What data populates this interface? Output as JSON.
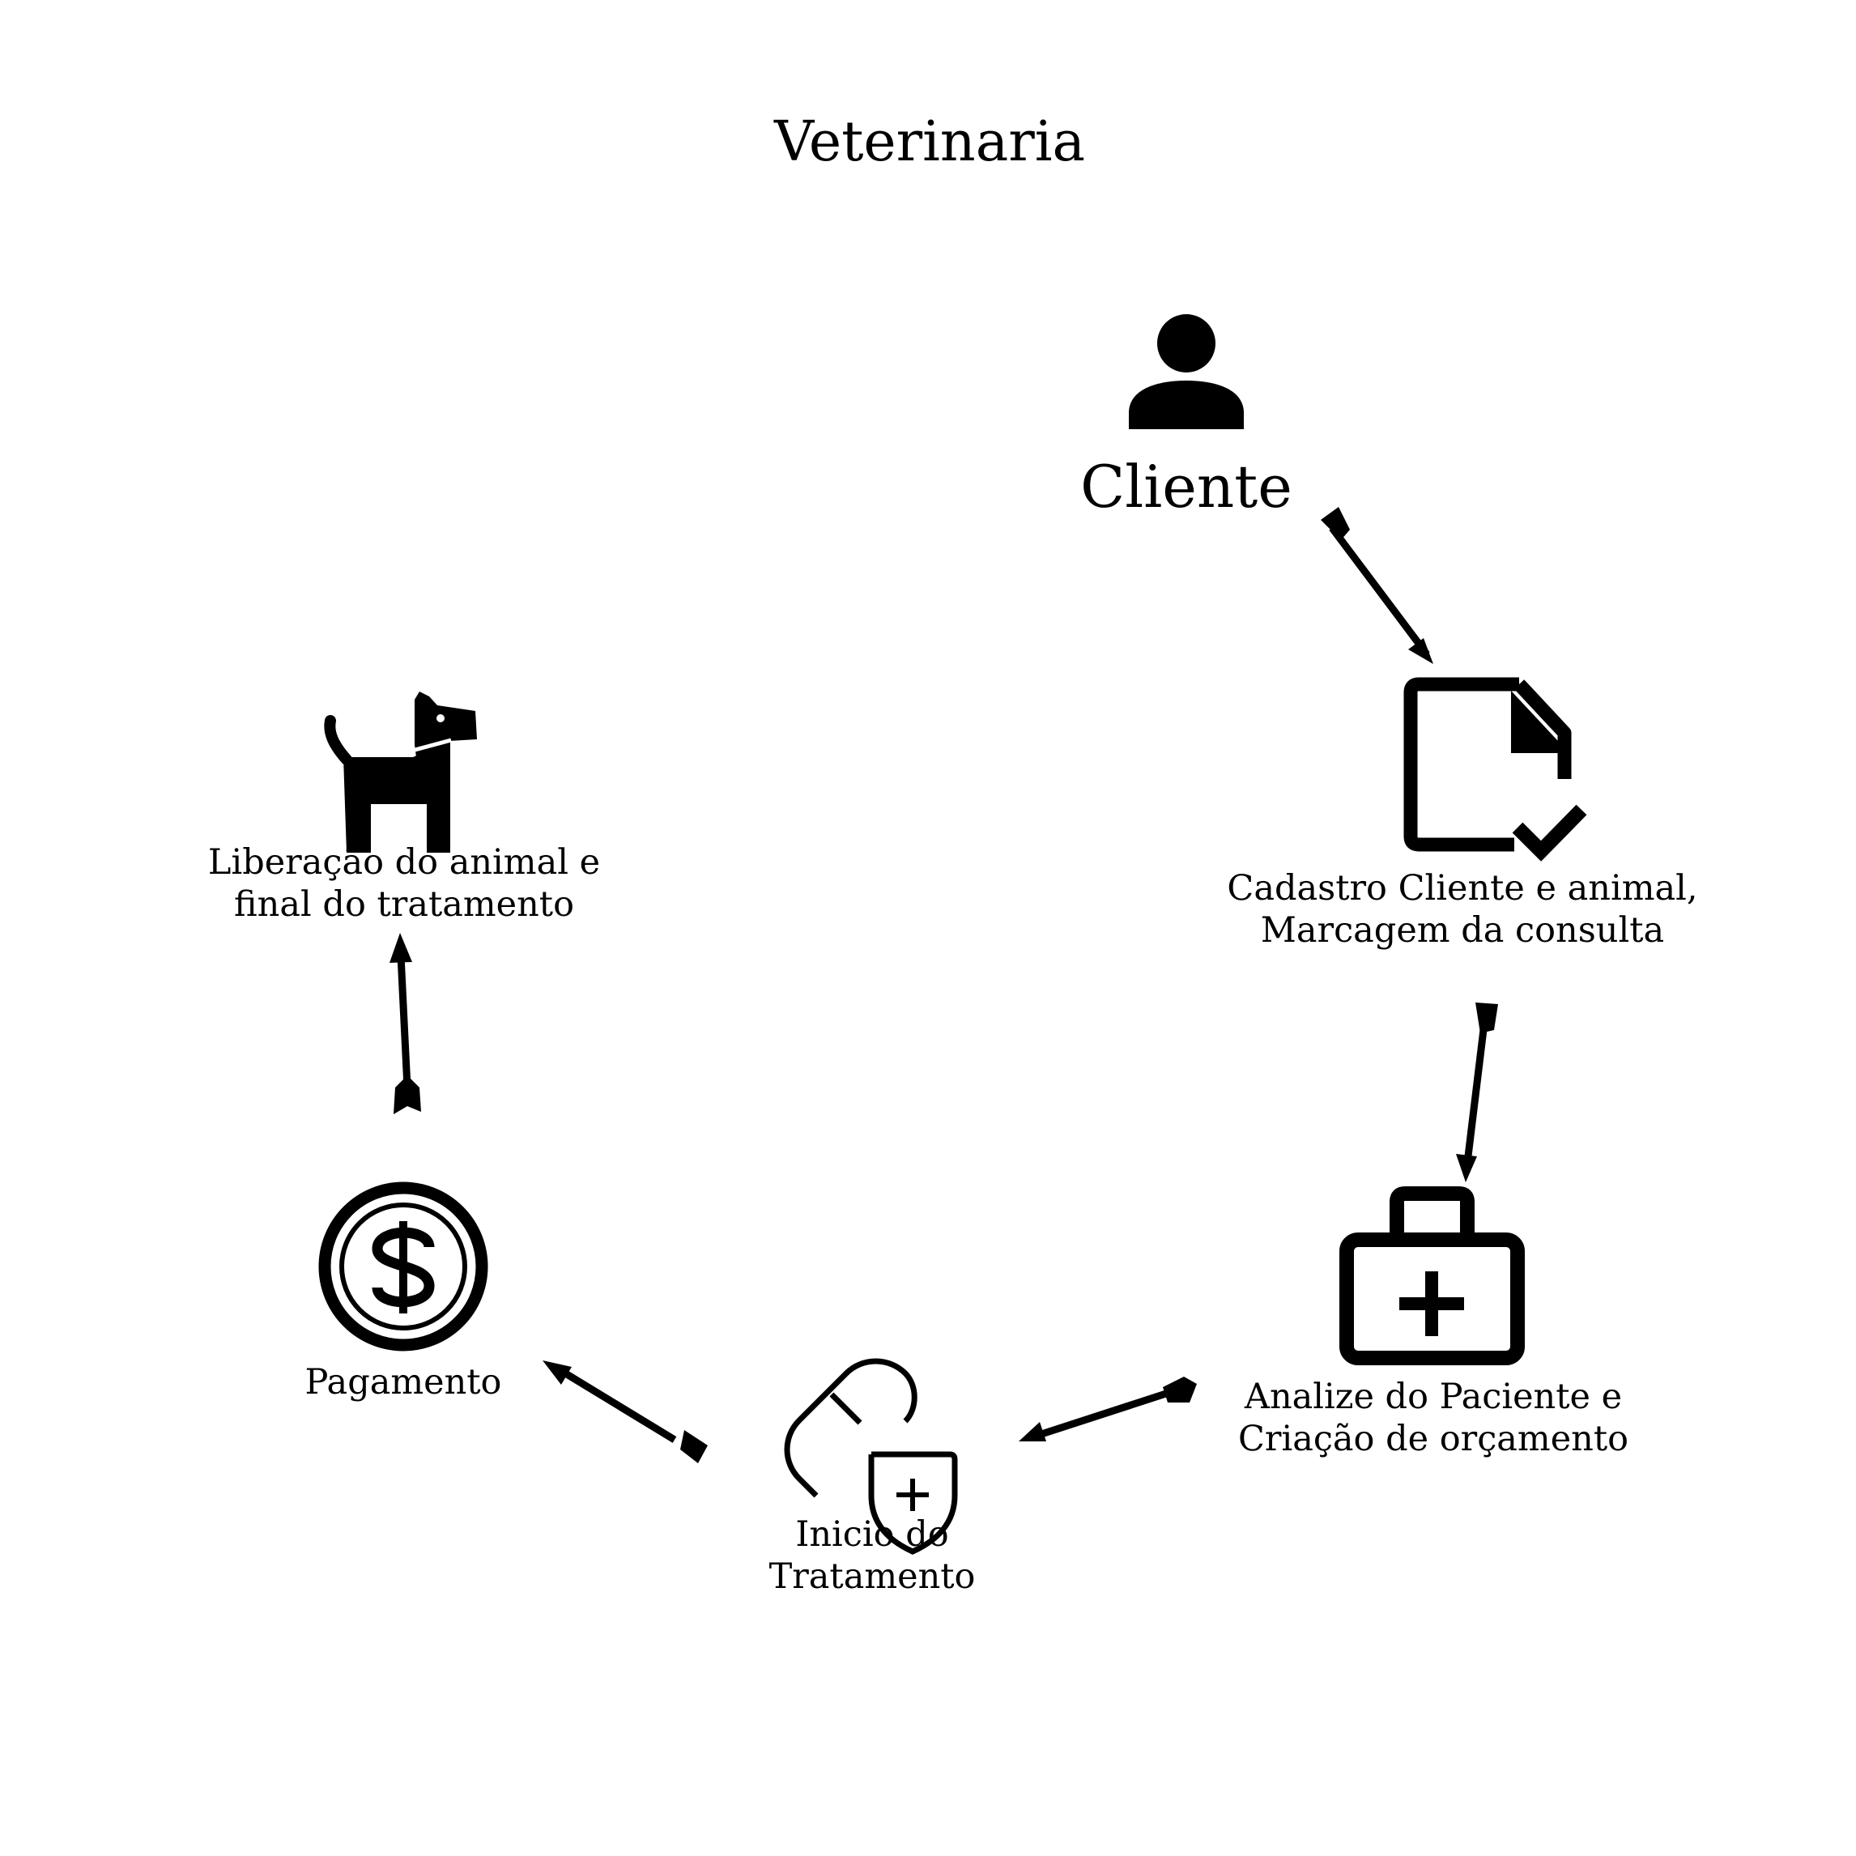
{
  "title": "Veterinaria",
  "steps": [
    {
      "id": "cliente",
      "icon": "person-icon",
      "lines": [
        "Cliente"
      ]
    },
    {
      "id": "cadastro",
      "icon": "document-check-icon",
      "lines": [
        "Cadastro Cliente e animal,",
        "Marcagem da consulta"
      ]
    },
    {
      "id": "analise",
      "icon": "medical-kit-icon",
      "lines": [
        "Analize do Paciente e",
        "Criação de orçamento"
      ]
    },
    {
      "id": "tratamento",
      "icon": "pill-shield-icon",
      "lines": [
        "Inicio do",
        "Tratamento"
      ]
    },
    {
      "id": "pagamento",
      "icon": "dollar-coin-icon",
      "lines": [
        "Pagamento"
      ]
    },
    {
      "id": "liberacao",
      "icon": "dog-icon",
      "lines": [
        "Liberação do animal e",
        "final do tratamento"
      ]
    }
  ],
  "flow": [
    [
      "cliente",
      "cadastro"
    ],
    [
      "cadastro",
      "analise"
    ],
    [
      "analise",
      "tratamento"
    ],
    [
      "tratamento",
      "pagamento"
    ],
    [
      "pagamento",
      "liberacao"
    ]
  ],
  "colors": {
    "ink": "#000000",
    "background": "#ffffff"
  }
}
